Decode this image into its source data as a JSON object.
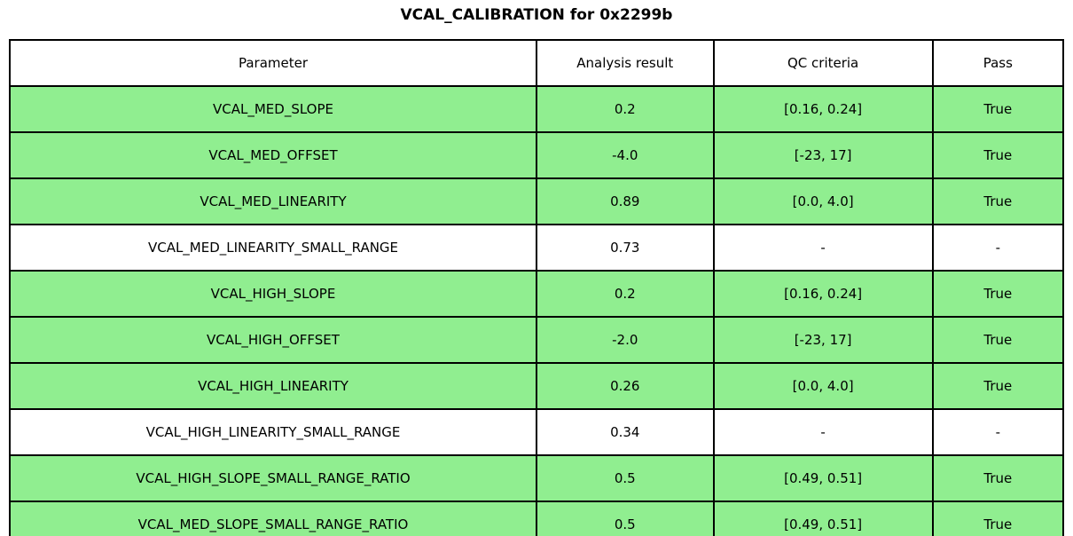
{
  "title": "VCAL_CALIBRATION for 0x2299b",
  "colors": {
    "pass_row_green": "#90EE90",
    "no_qc_row_white": "#FFFFFF",
    "border_black": "#000000"
  },
  "table": {
    "headers": [
      "Parameter",
      "Analysis result",
      "QC criteria",
      "Pass"
    ],
    "rows": [
      {
        "cells": [
          "VCAL_MED_SLOPE",
          "0.2",
          "[0.16, 0.24]",
          "True"
        ],
        "highlight": true
      },
      {
        "cells": [
          "VCAL_MED_OFFSET",
          "-4.0",
          "[-23, 17]",
          "True"
        ],
        "highlight": true
      },
      {
        "cells": [
          "VCAL_MED_LINEARITY",
          "0.89",
          "[0.0, 4.0]",
          "True"
        ],
        "highlight": true
      },
      {
        "cells": [
          "VCAL_MED_LINEARITY_SMALL_RANGE",
          "0.73",
          "-",
          "-"
        ],
        "highlight": false
      },
      {
        "cells": [
          "VCAL_HIGH_SLOPE",
          "0.2",
          "[0.16, 0.24]",
          "True"
        ],
        "highlight": true
      },
      {
        "cells": [
          "VCAL_HIGH_OFFSET",
          "-2.0",
          "[-23, 17]",
          "True"
        ],
        "highlight": true
      },
      {
        "cells": [
          "VCAL_HIGH_LINEARITY",
          "0.26",
          "[0.0, 4.0]",
          "True"
        ],
        "highlight": true
      },
      {
        "cells": [
          "VCAL_HIGH_LINEARITY_SMALL_RANGE",
          "0.34",
          "-",
          "-"
        ],
        "highlight": false
      },
      {
        "cells": [
          "VCAL_HIGH_SLOPE_SMALL_RANGE_RATIO",
          "0.5",
          "[0.49, 0.51]",
          "True"
        ],
        "highlight": true
      },
      {
        "cells": [
          "VCAL_MED_SLOPE_SMALL_RANGE_RATIO",
          "0.5",
          "[0.49, 0.51]",
          "True"
        ],
        "highlight": true
      }
    ]
  }
}
